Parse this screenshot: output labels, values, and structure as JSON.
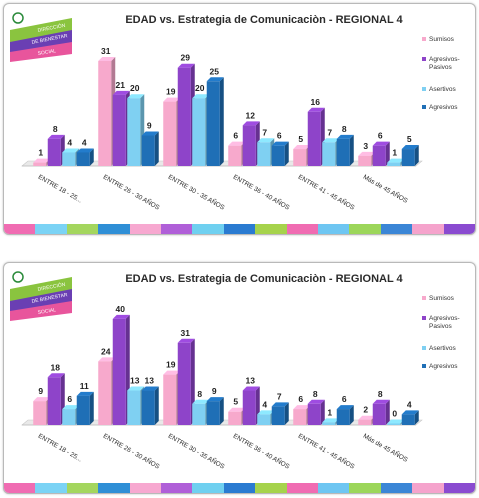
{
  "colors": {
    "series": [
      "#f7a9cc",
      "#8e44c9",
      "#7fd0f2",
      "#1f6fb6"
    ],
    "stripe": [
      "#f06cb2",
      "#7bd3f5",
      "#a4d65e",
      "#2f8fd6",
      "#f7a8d0",
      "#b05fd8",
      "#6fd0f0",
      "#2a7bd1",
      "#a6d34c",
      "#f06cb2",
      "#6ec6f2",
      "#9cd65a",
      "#3b86d6",
      "#f5a3cc",
      "#8a4bd0"
    ]
  },
  "logo": {
    "line1": "DIRECCIÓN",
    "line2": "DE BIENESTAR",
    "line3": "SOCIAL"
  },
  "chart_data": [
    {
      "type": "bar",
      "title": "EDAD vs. Estrategia de Comunicaciòn - REGIONAL 4",
      "categories": [
        "ENTRE 18 - 25...",
        "ENTRE 26 - 30 AÑOS",
        "ENTRE 30 - 35 AÑOS",
        "ENTRE 36 - 40 AÑOS",
        "ENTRE 41 - 45 AÑOS",
        "Más de 45 AÑOS"
      ],
      "series": [
        {
          "name": "Sumisos",
          "values": [
            1,
            31,
            19,
            6,
            5,
            3
          ]
        },
        {
          "name": "Agresivos-Pasivos",
          "values": [
            8,
            21,
            29,
            12,
            16,
            6
          ]
        },
        {
          "name": "Asertivos",
          "values": [
            4,
            20,
            20,
            7,
            7,
            1
          ]
        },
        {
          "name": "Agresivos",
          "values": [
            4,
            9,
            25,
            6,
            8,
            5
          ]
        }
      ],
      "ylim": [
        0,
        36
      ],
      "legend": "right"
    },
    {
      "type": "bar",
      "title": "EDAD vs. Estrategia de Comunicaciòn - REGIONAL 4",
      "categories": [
        "ENTRE 18 - 25...",
        "ENTRE 26 - 30 AÑOS",
        "ENTRE 30 - 35 AÑOS",
        "ENTRE 36 - 40 AÑOS",
        "ENTRE 41 - 45 AÑOS",
        "Más de 45 AÑOS"
      ],
      "series": [
        {
          "name": "Sumisos",
          "values": [
            9,
            24,
            19,
            5,
            6,
            2
          ]
        },
        {
          "name": "Agresivos-Pasivos",
          "values": [
            18,
            40,
            31,
            13,
            8,
            8
          ]
        },
        {
          "name": "Asertivos",
          "values": [
            6,
            13,
            8,
            4,
            1,
            0
          ]
        },
        {
          "name": "Agresivos",
          "values": [
            11,
            13,
            9,
            7,
            6,
            4
          ]
        }
      ],
      "ylim": [
        0,
        46
      ],
      "legend": "right"
    }
  ]
}
